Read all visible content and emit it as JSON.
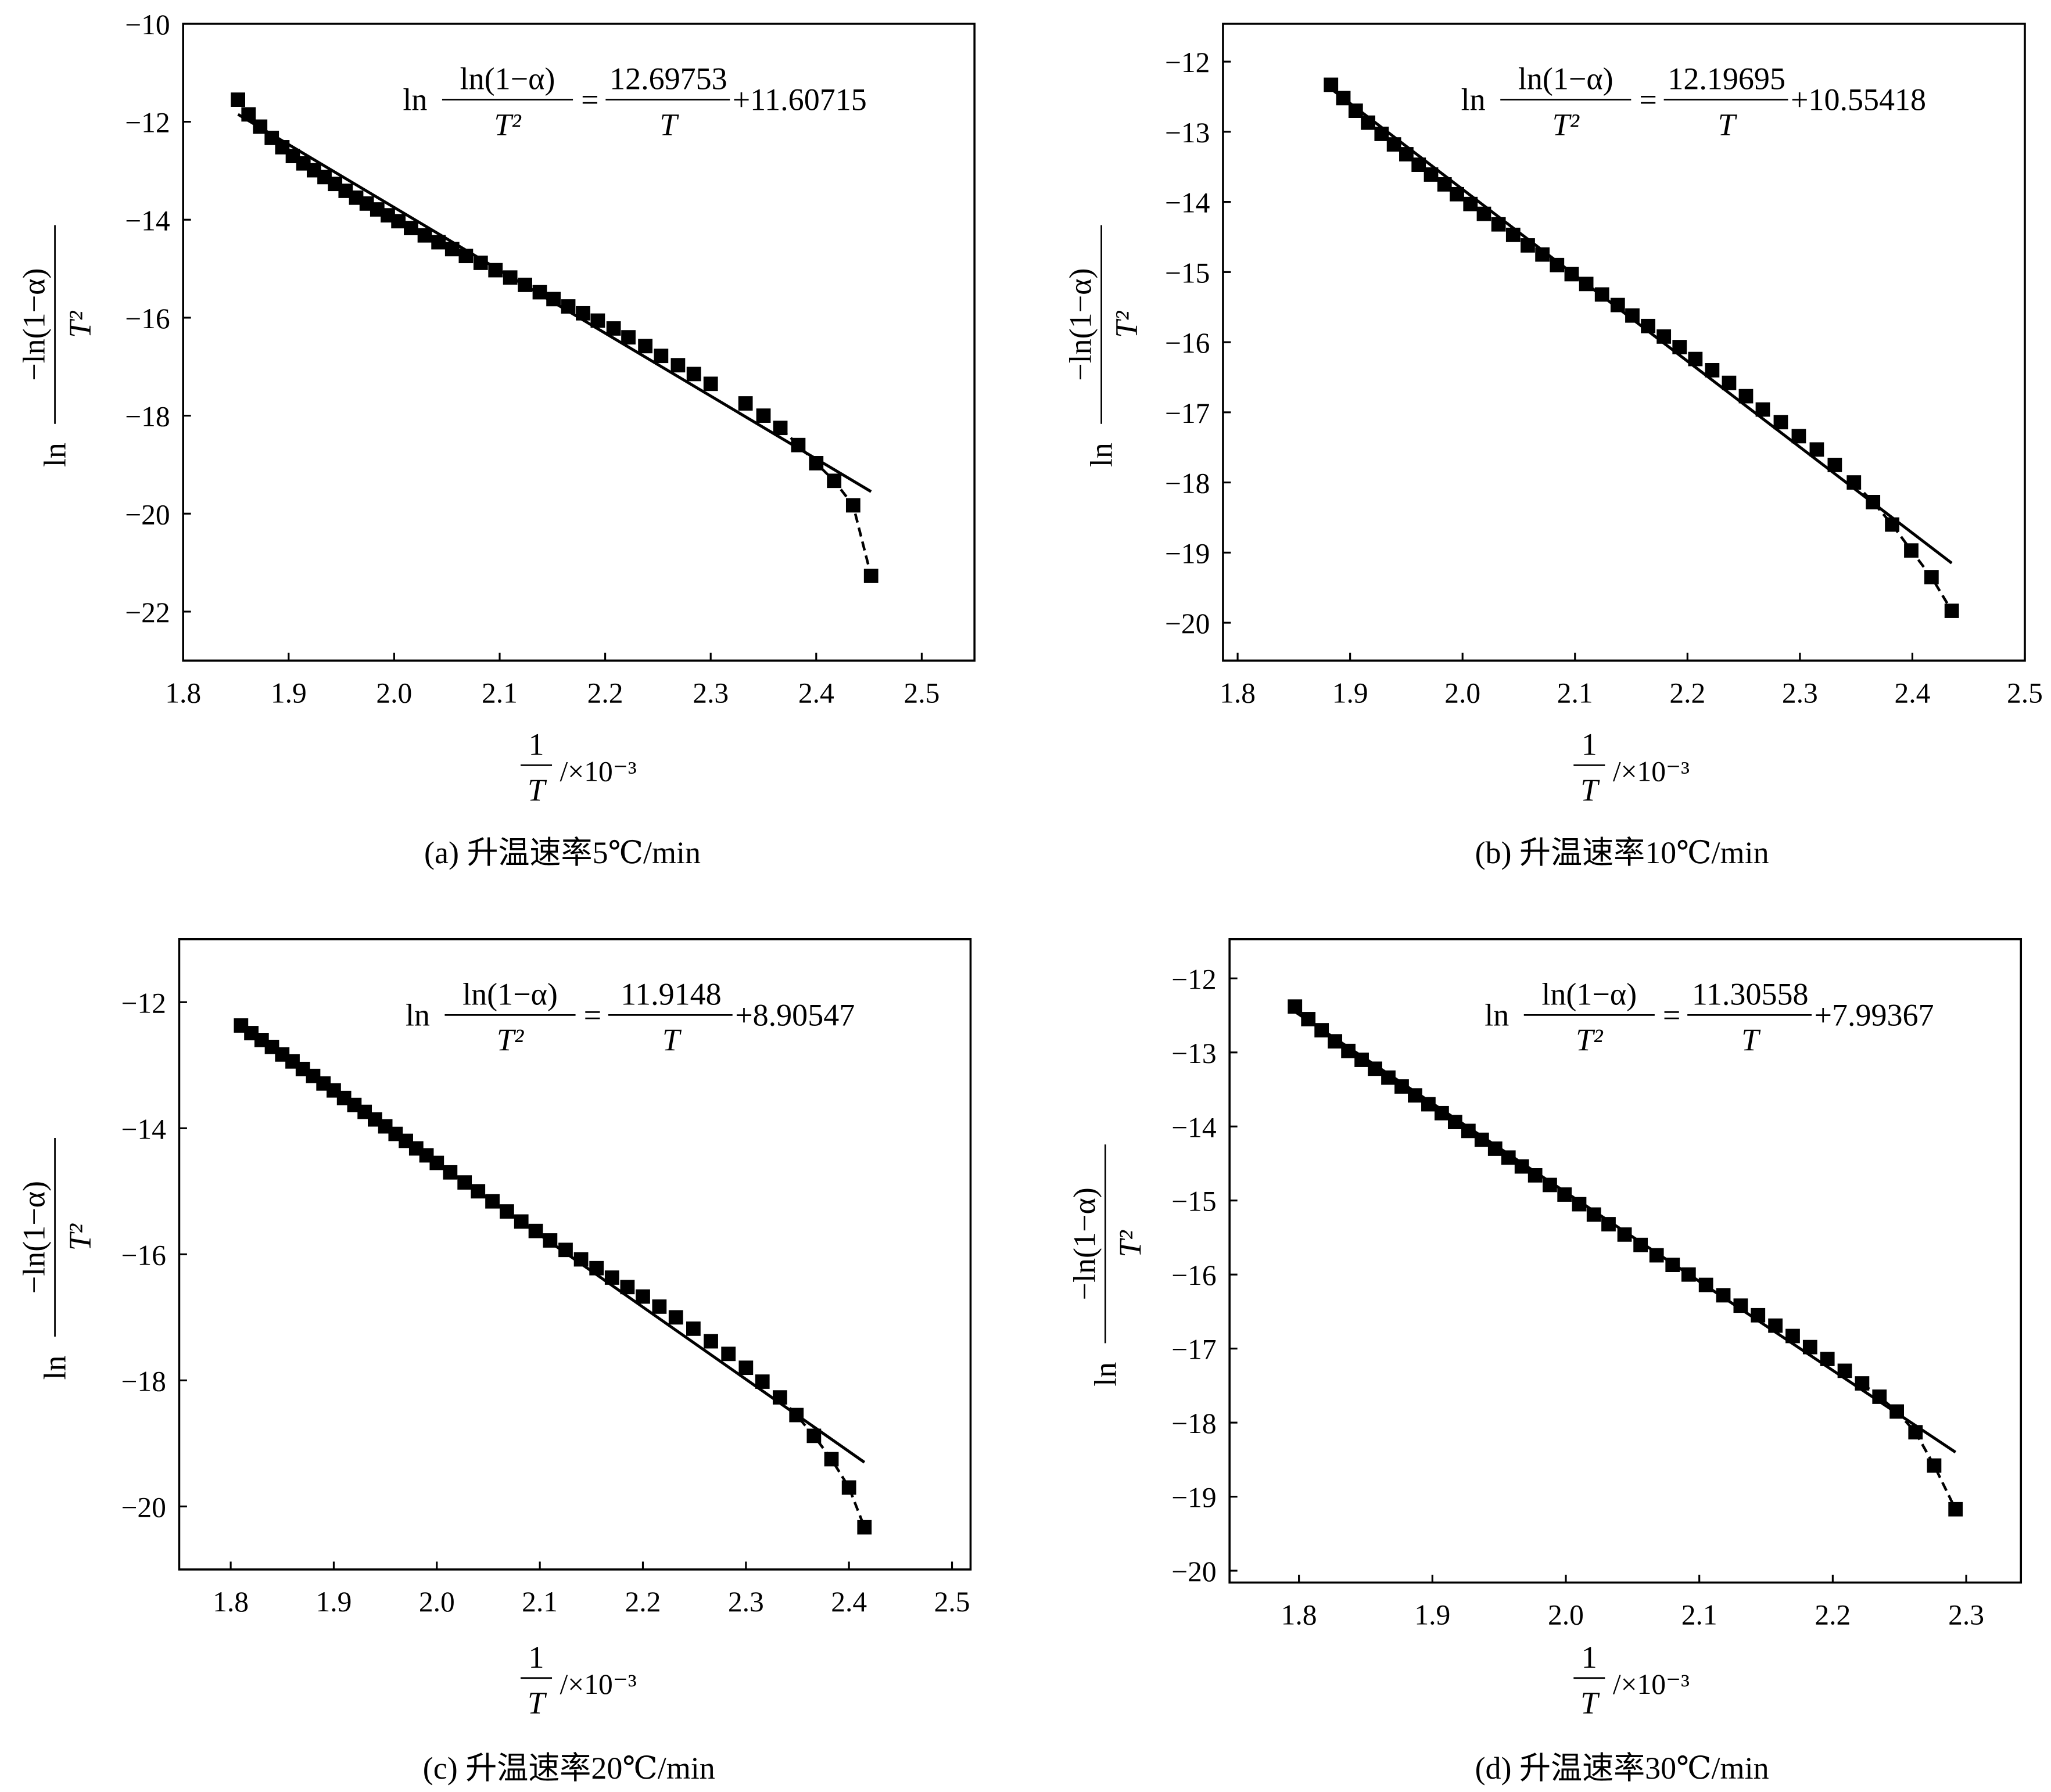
{
  "chart_data": [
    {
      "type": "scatter",
      "title": "(a) 升温速率5℃/min",
      "xlabel": {
        "num": "1",
        "den": "T",
        "suffix": "/×10⁻³"
      },
      "ylabel": {
        "prefix": "ln",
        "num": "−ln(1−α)",
        "den": "T²"
      },
      "xlim": [
        1.8,
        2.55
      ],
      "ylim": [
        -23,
        -10
      ],
      "xticks": [
        1.8,
        1.9,
        2.0,
        2.1,
        2.2,
        2.3,
        2.4,
        2.5
      ],
      "xticklabels": [
        "1.8",
        "1.9",
        "2.0",
        "2.1",
        "2.2",
        "2.3",
        "2.4",
        "2.5"
      ],
      "yticks": [
        -10,
        -12,
        -14,
        -16,
        -18,
        -20,
        -22
      ],
      "yticklabels": [
        "−10",
        "−12",
        "−14",
        "−16",
        "−18",
        "−20",
        "−22"
      ],
      "equation": {
        "ln": "ln",
        "lhs_num": "ln(1−α)",
        "lhs_den": "T²",
        "eq": "=",
        "rhs_num": "12.69753",
        "rhs_den": "T",
        "rhs_const": "+11.60715"
      },
      "fit_line": [
        [
          1.852,
          -11.85
        ],
        [
          2.452,
          -19.55
        ]
      ],
      "points": [
        [
          1.852,
          -11.55
        ],
        [
          1.862,
          -11.85
        ],
        [
          1.873,
          -12.1
        ],
        [
          1.884,
          -12.33
        ],
        [
          1.894,
          -12.52
        ],
        [
          1.904,
          -12.7
        ],
        [
          1.914,
          -12.85
        ],
        [
          1.924,
          -12.99
        ],
        [
          1.934,
          -13.13
        ],
        [
          1.944,
          -13.27
        ],
        [
          1.954,
          -13.41
        ],
        [
          1.964,
          -13.55
        ],
        [
          1.974,
          -13.67
        ],
        [
          1.984,
          -13.79
        ],
        [
          1.994,
          -13.91
        ],
        [
          2.004,
          -14.03
        ],
        [
          2.016,
          -14.17
        ],
        [
          2.029,
          -14.32
        ],
        [
          2.042,
          -14.46
        ],
        [
          2.055,
          -14.6
        ],
        [
          2.068,
          -14.74
        ],
        [
          2.082,
          -14.88
        ],
        [
          2.096,
          -15.03
        ],
        [
          2.11,
          -15.18
        ],
        [
          2.124,
          -15.33
        ],
        [
          2.138,
          -15.48
        ],
        [
          2.151,
          -15.62
        ],
        [
          2.165,
          -15.77
        ],
        [
          2.179,
          -15.91
        ],
        [
          2.193,
          -16.06
        ],
        [
          2.208,
          -16.22
        ],
        [
          2.222,
          -16.4
        ],
        [
          2.238,
          -16.58
        ],
        [
          2.253,
          -16.78
        ],
        [
          2.269,
          -16.97
        ],
        [
          2.284,
          -17.15
        ],
        [
          2.3,
          -17.35
        ],
        [
          2.333,
          -17.75
        ],
        [
          2.35,
          -18.0
        ],
        [
          2.366,
          -18.25
        ],
        [
          2.383,
          -18.6
        ],
        [
          2.4,
          -18.97
        ],
        [
          2.417,
          -19.33
        ],
        [
          2.435,
          -19.83
        ],
        [
          2.452,
          -21.27
        ]
      ]
    },
    {
      "type": "scatter",
      "title": "(b) 升温速率10℃/min",
      "xlabel": {
        "num": "1",
        "den": "T",
        "suffix": "/×10⁻³"
      },
      "ylabel": {
        "prefix": "ln",
        "num": "−ln(1−α)",
        "den": "T²"
      },
      "xlim": [
        1.787,
        2.5
      ],
      "ylim": [
        -20.54,
        -11.46
      ],
      "xticks": [
        1.8,
        1.9,
        2.0,
        2.1,
        2.2,
        2.3,
        2.4,
        2.5
      ],
      "xticklabels": [
        "1.8",
        "1.9",
        "2.0",
        "2.1",
        "2.2",
        "2.3",
        "2.4",
        "2.5"
      ],
      "yticks": [
        -12,
        -13,
        -14,
        -15,
        -16,
        -17,
        -18,
        -19,
        -20
      ],
      "yticklabels": [
        "−12",
        "−13",
        "−14",
        "−15",
        "−16",
        "−17",
        "−18",
        "−19",
        "−20"
      ],
      "equation": {
        "ln": "ln",
        "lhs_num": "ln(1−α)",
        "lhs_den": "T²",
        "eq": "=",
        "rhs_num": "12.19695",
        "rhs_den": "T",
        "rhs_const": "+10.55418"
      },
      "fit_line": [
        [
          1.88,
          -12.35
        ],
        [
          2.435,
          -19.15
        ]
      ],
      "points": [
        [
          1.883,
          -12.33
        ],
        [
          1.894,
          -12.52
        ],
        [
          1.905,
          -12.7
        ],
        [
          1.916,
          -12.87
        ],
        [
          1.928,
          -13.03
        ],
        [
          1.939,
          -13.18
        ],
        [
          1.95,
          -13.32
        ],
        [
          1.961,
          -13.47
        ],
        [
          1.972,
          -13.61
        ],
        [
          1.984,
          -13.75
        ],
        [
          1.995,
          -13.89
        ],
        [
          2.007,
          -14.03
        ],
        [
          2.019,
          -14.17
        ],
        [
          2.032,
          -14.32
        ],
        [
          2.045,
          -14.47
        ],
        [
          2.058,
          -14.62
        ],
        [
          2.071,
          -14.75
        ],
        [
          2.084,
          -14.9
        ],
        [
          2.097,
          -15.03
        ],
        [
          2.11,
          -15.17
        ],
        [
          2.124,
          -15.32
        ],
        [
          2.138,
          -15.47
        ],
        [
          2.151,
          -15.62
        ],
        [
          2.165,
          -15.77
        ],
        [
          2.179,
          -15.92
        ],
        [
          2.193,
          -16.07
        ],
        [
          2.207,
          -16.24
        ],
        [
          2.222,
          -16.4
        ],
        [
          2.237,
          -16.58
        ],
        [
          2.252,
          -16.77
        ],
        [
          2.267,
          -16.96
        ],
        [
          2.283,
          -17.14
        ],
        [
          2.299,
          -17.34
        ],
        [
          2.315,
          -17.53
        ],
        [
          2.331,
          -17.75
        ],
        [
          2.348,
          -18.0
        ],
        [
          2.365,
          -18.28
        ],
        [
          2.382,
          -18.6
        ],
        [
          2.399,
          -18.97
        ],
        [
          2.417,
          -19.35
        ],
        [
          2.435,
          -19.83
        ]
      ]
    },
    {
      "type": "scatter",
      "title": "(c) 升温速率20℃/min",
      "xlabel": {
        "num": "1",
        "den": "T",
        "suffix": "/×10⁻³"
      },
      "ylabel": {
        "prefix": "ln",
        "num": "−ln(1−α)",
        "den": "T²"
      },
      "xlim": [
        1.75,
        2.518
      ],
      "ylim": [
        -21,
        -11
      ],
      "xticks": [
        1.8,
        1.9,
        2.0,
        2.1,
        2.2,
        2.3,
        2.4,
        2.5
      ],
      "xticklabels": [
        "1.8",
        "1.9",
        "2.0",
        "2.1",
        "2.2",
        "2.3",
        "2.4",
        "2.5"
      ],
      "yticks": [
        -12,
        -14,
        -16,
        -18,
        -20
      ],
      "yticklabels": [
        "−12",
        "−14",
        "−16",
        "−18",
        "−20"
      ],
      "equation": {
        "ln": "ln",
        "lhs_num": "ln(1−α)",
        "lhs_den": "T²",
        "eq": "=",
        "rhs_num": "11.9148",
        "rhs_den": "T",
        "rhs_const": "+8.90547"
      },
      "fit_line": [
        [
          1.81,
          -12.37
        ],
        [
          2.415,
          -19.3
        ]
      ],
      "points": [
        [
          1.81,
          -12.37
        ],
        [
          1.82,
          -12.49
        ],
        [
          1.83,
          -12.6
        ],
        [
          1.84,
          -12.71
        ],
        [
          1.85,
          -12.83
        ],
        [
          1.86,
          -12.94
        ],
        [
          1.87,
          -13.06
        ],
        [
          1.88,
          -13.17
        ],
        [
          1.89,
          -13.29
        ],
        [
          1.9,
          -13.4
        ],
        [
          1.91,
          -13.52
        ],
        [
          1.92,
          -13.63
        ],
        [
          1.93,
          -13.74
        ],
        [
          1.94,
          -13.86
        ],
        [
          1.95,
          -13.97
        ],
        [
          1.96,
          -14.09
        ],
        [
          1.97,
          -14.2
        ],
        [
          1.98,
          -14.32
        ],
        [
          1.99,
          -14.43
        ],
        [
          2.0,
          -14.55
        ],
        [
          2.013,
          -14.7
        ],
        [
          2.027,
          -14.86
        ],
        [
          2.04,
          -15.0
        ],
        [
          2.054,
          -15.16
        ],
        [
          2.068,
          -15.32
        ],
        [
          2.082,
          -15.48
        ],
        [
          2.096,
          -15.63
        ],
        [
          2.11,
          -15.78
        ],
        [
          2.125,
          -15.93
        ],
        [
          2.14,
          -16.08
        ],
        [
          2.155,
          -16.22
        ],
        [
          2.17,
          -16.37
        ],
        [
          2.185,
          -16.52
        ],
        [
          2.2,
          -16.67
        ],
        [
          2.216,
          -16.83
        ],
        [
          2.232,
          -17.0
        ],
        [
          2.249,
          -17.18
        ],
        [
          2.266,
          -17.38
        ],
        [
          2.283,
          -17.58
        ],
        [
          2.3,
          -17.8
        ],
        [
          2.316,
          -18.02
        ],
        [
          2.333,
          -18.27
        ],
        [
          2.349,
          -18.55
        ],
        [
          2.366,
          -18.88
        ],
        [
          2.383,
          -19.25
        ],
        [
          2.4,
          -19.7
        ],
        [
          2.415,
          -20.33
        ]
      ]
    },
    {
      "type": "scatter",
      "title": "(d) 升温速率30℃/min",
      "xlabel": {
        "num": "1",
        "den": "T",
        "suffix": "/×10⁻³"
      },
      "ylabel": {
        "prefix": "ln",
        "num": "−ln(1−α)",
        "den": "T²"
      },
      "xlim": [
        1.748,
        2.341
      ],
      "ylim": [
        -20.16,
        -11.47
      ],
      "xticks": [
        1.8,
        1.9,
        2.0,
        2.1,
        2.2,
        2.3
      ],
      "xticklabels": [
        "1.8",
        "1.9",
        "2.0",
        "2.1",
        "2.2",
        "2.3"
      ],
      "yticks": [
        -12,
        -13,
        -14,
        -15,
        -16,
        -17,
        -18,
        -19,
        -20
      ],
      "yticklabels": [
        "−12",
        "−13",
        "−14",
        "−15",
        "−16",
        "−17",
        "−18",
        "−19",
        "−20"
      ],
      "equation": {
        "ln": "ln",
        "lhs_num": "ln(1−α)",
        "lhs_den": "T²",
        "eq": "=",
        "rhs_num": "11.30558",
        "rhs_den": "T",
        "rhs_const": "+7.99367"
      },
      "fit_line": [
        [
          1.797,
          -12.45
        ],
        [
          2.292,
          -18.4
        ]
      ],
      "points": [
        [
          1.797,
          -12.38
        ],
        [
          1.807,
          -12.55
        ],
        [
          1.817,
          -12.7
        ],
        [
          1.827,
          -12.85
        ],
        [
          1.837,
          -12.98
        ],
        [
          1.847,
          -13.1
        ],
        [
          1.857,
          -13.22
        ],
        [
          1.867,
          -13.34
        ],
        [
          1.877,
          -13.46
        ],
        [
          1.887,
          -13.58
        ],
        [
          1.897,
          -13.7
        ],
        [
          1.907,
          -13.82
        ],
        [
          1.917,
          -13.94
        ],
        [
          1.927,
          -14.06
        ],
        [
          1.937,
          -14.18
        ],
        [
          1.947,
          -14.3
        ],
        [
          1.957,
          -14.42
        ],
        [
          1.967,
          -14.54
        ],
        [
          1.977,
          -14.66
        ],
        [
          1.988,
          -14.79
        ],
        [
          1.999,
          -14.92
        ],
        [
          2.01,
          -15.05
        ],
        [
          2.021,
          -15.19
        ],
        [
          2.032,
          -15.32
        ],
        [
          2.044,
          -15.46
        ],
        [
          2.056,
          -15.6
        ],
        [
          2.068,
          -15.74
        ],
        [
          2.08,
          -15.87
        ],
        [
          2.092,
          -16.0
        ],
        [
          2.105,
          -16.14
        ],
        [
          2.118,
          -16.28
        ],
        [
          2.131,
          -16.42
        ],
        [
          2.144,
          -16.55
        ],
        [
          2.157,
          -16.69
        ],
        [
          2.17,
          -16.83
        ],
        [
          2.183,
          -16.98
        ],
        [
          2.196,
          -17.14
        ],
        [
          2.209,
          -17.3
        ],
        [
          2.222,
          -17.47
        ],
        [
          2.235,
          -17.65
        ],
        [
          2.248,
          -17.85
        ],
        [
          2.262,
          -18.13
        ],
        [
          2.276,
          -18.58
        ],
        [
          2.292,
          -19.17
        ]
      ]
    }
  ]
}
